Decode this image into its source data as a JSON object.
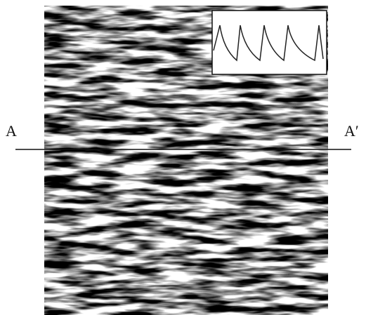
{
  "labels": {
    "left": "A",
    "right": "A′"
  }
}
